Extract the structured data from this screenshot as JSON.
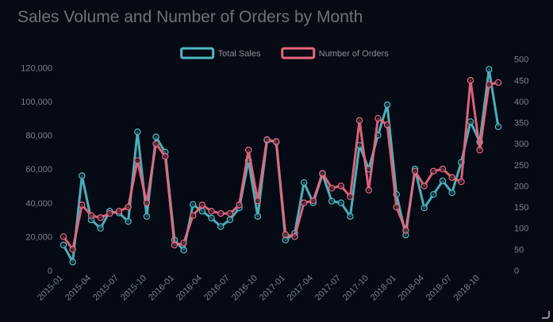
{
  "chart_data": {
    "type": "line",
    "title": "Sales Volume and Number of Orders by Month",
    "legend_position": "top-center",
    "grid": false,
    "x": [
      "2015-01",
      "2015-02",
      "2015-03",
      "2015-04",
      "2015-05",
      "2015-06",
      "2015-07",
      "2015-08",
      "2015-09",
      "2015-10",
      "2015-11",
      "2015-12",
      "2016-01",
      "2016-02",
      "2016-03",
      "2016-04",
      "2016-05",
      "2016-06",
      "2016-07",
      "2016-08",
      "2016-09",
      "2016-10",
      "2016-11",
      "2016-12",
      "2017-01",
      "2017-02",
      "2017-03",
      "2017-04",
      "2017-05",
      "2017-06",
      "2017-07",
      "2017-08",
      "2017-09",
      "2017-10",
      "2017-11",
      "2017-12",
      "2018-01",
      "2018-02",
      "2018-03",
      "2018-04",
      "2018-05",
      "2018-06",
      "2018-07",
      "2018-08",
      "2018-09",
      "2018-10",
      "2018-11",
      "2018-12"
    ],
    "x_tick_labels": [
      "2015-01",
      "2015-04",
      "2015-07",
      "2015-10",
      "2016-01",
      "2016-04",
      "2016-07",
      "2016-10",
      "2017-01",
      "2017-04",
      "2017-07",
      "2017-10",
      "2018-01",
      "2018-04",
      "2018-07",
      "2018-10"
    ],
    "left_axis": {
      "ylim": [
        0,
        130000
      ],
      "ticks": [
        0,
        20000,
        40000,
        60000,
        80000,
        100000,
        120000
      ],
      "tick_labels": [
        "0",
        "20,000",
        "40,000",
        "60,000",
        "80,000",
        "100,000",
        "120,000"
      ]
    },
    "right_axis": {
      "ylim": [
        0,
        520
      ],
      "ticks": [
        0,
        50,
        100,
        150,
        200,
        250,
        300,
        350,
        400,
        450,
        500
      ],
      "tick_labels": [
        "0",
        "50",
        "100",
        "150",
        "200",
        "250",
        "300",
        "350",
        "400",
        "450",
        "500"
      ]
    },
    "series": [
      {
        "name": "Total Sales",
        "axis": "left",
        "color": "#4fb8c0",
        "values": [
          15000,
          5000,
          56000,
          30000,
          25000,
          35000,
          34000,
          29000,
          82000,
          32000,
          79000,
          70000,
          18000,
          12000,
          39000,
          35000,
          31000,
          26000,
          30000,
          37000,
          65000,
          32000,
          77000,
          76000,
          18000,
          22000,
          52000,
          40000,
          57000,
          41000,
          40000,
          32000,
          74000,
          60000,
          80000,
          98000,
          45000,
          21000,
          60000,
          37000,
          45000,
          53000,
          46000,
          64000,
          88000,
          76000,
          119000,
          85000
        ]
      },
      {
        "name": "Number of Orders",
        "axis": "right",
        "color": "#e8667f",
        "values": [
          80,
          50,
          155,
          130,
          125,
          135,
          140,
          150,
          260,
          160,
          300,
          270,
          60,
          65,
          130,
          155,
          140,
          135,
          135,
          155,
          285,
          165,
          310,
          305,
          85,
          80,
          160,
          165,
          230,
          195,
          200,
          175,
          355,
          190,
          360,
          345,
          150,
          95,
          235,
          200,
          235,
          240,
          220,
          210,
          450,
          285,
          440,
          445
        ]
      }
    ]
  }
}
